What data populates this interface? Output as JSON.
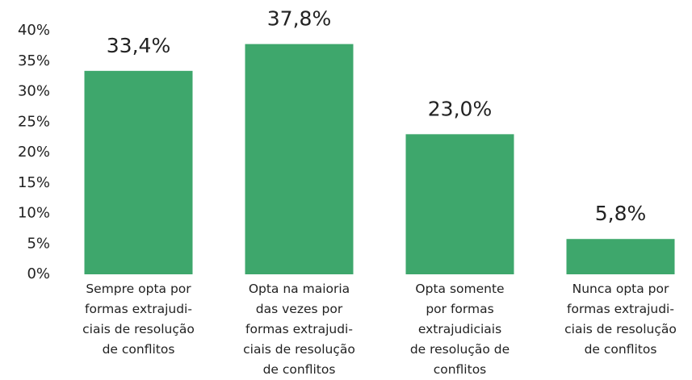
{
  "chart_data": {
    "type": "bar",
    "categories": [
      "Sempre opta por\nformas extrajudi-\nciais de resolução\nde conflitos",
      "Opta na maioria\ndas vezes por\nformas extrajudi-\nciais de resolução\nde conflitos",
      "Opta somente\npor formas\nextrajudiciais\nde resolução de\nconflitos",
      "Nunca opta por\nformas extrajudi-\nciais de resolução\nde conflitos"
    ],
    "values": [
      33.4,
      37.8,
      23.0,
      5.8
    ],
    "value_labels": [
      "33,4%",
      "37,8%",
      "23,0%",
      "5,8%"
    ],
    "color": "#3ea76c",
    "ylim": [
      0,
      40
    ],
    "yticks": [
      {
        "value": 0,
        "label": "0%"
      },
      {
        "value": 5,
        "label": "5%"
      },
      {
        "value": 10,
        "label": "10%"
      },
      {
        "value": 15,
        "label": "15%"
      },
      {
        "value": 20,
        "label": "20%"
      },
      {
        "value": 25,
        "label": "25%"
      },
      {
        "value": 30,
        "label": "30%"
      },
      {
        "value": 35,
        "label": "35%"
      },
      {
        "value": 40,
        "label": "40%"
      }
    ],
    "grid": false
  }
}
